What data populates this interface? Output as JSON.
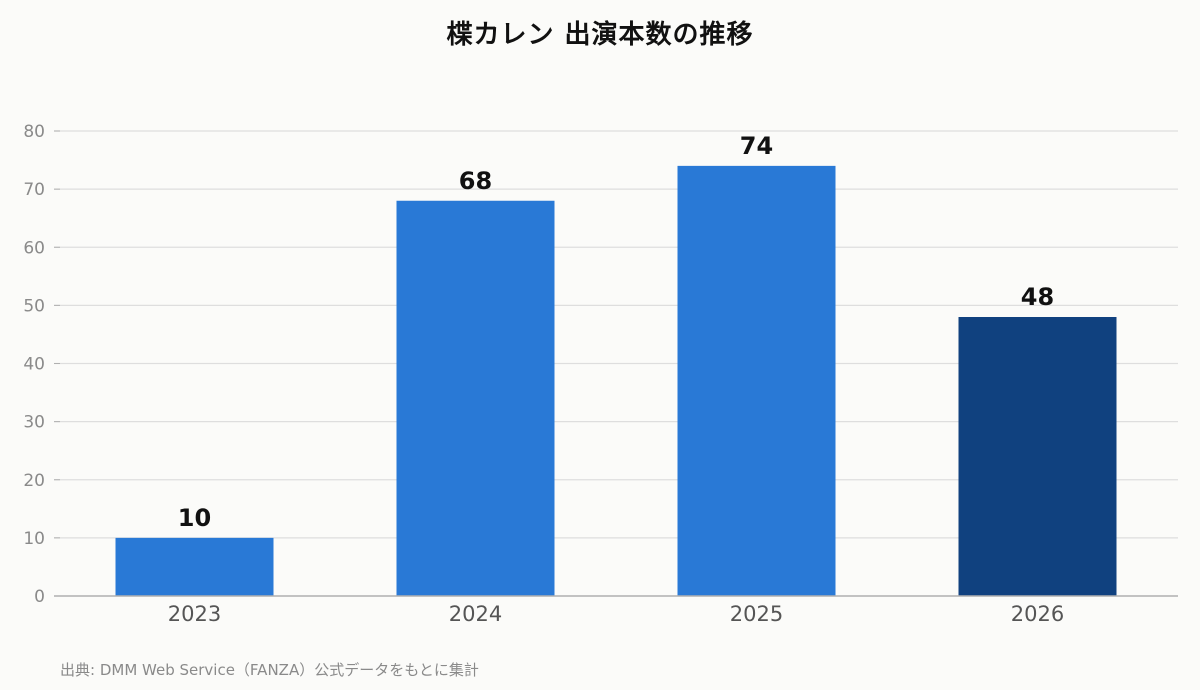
{
  "chart_data": {
    "type": "bar",
    "title": "楪カレン 出演本数の推移",
    "categories": [
      "2023",
      "2024",
      "2025",
      "2026"
    ],
    "values": [
      10,
      68,
      74,
      48
    ],
    "ylim": [
      0,
      80
    ],
    "yticks": [
      0,
      10,
      20,
      30,
      40,
      50,
      60,
      70,
      80
    ],
    "grid": true,
    "xlabel": "",
    "ylabel": "",
    "colors": {
      "bar": "#2979d6",
      "bar_highlight": "#10417f",
      "grid": "#dedede",
      "axis": "#b0b0b0",
      "tick_label": "#8a8a8a",
      "category_label": "#555555",
      "value_label": "#111111"
    },
    "highlight_index": 3
  },
  "source_note": "出典: DMM Web Service（FANZA）公式データをもとに集計"
}
